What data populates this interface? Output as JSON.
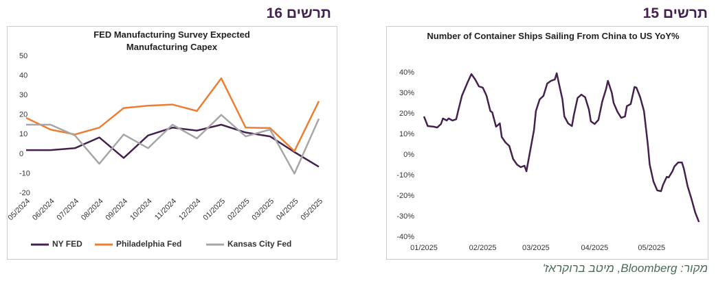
{
  "headers": [
    "תרשים 16",
    "תרשים 15"
  ],
  "source": "מקור: Bloomberg, מיטב ברוקראז'",
  "chart_data": [
    {
      "type": "line",
      "title": "FED Manufacturing Survey Expected Manufacturing Capex",
      "categories": [
        "05/2024",
        "06/2024",
        "07/2024",
        "08/2024",
        "09/2024",
        "10/2024",
        "11/2024",
        "12/2024",
        "01/2025",
        "02/2025",
        "03/2025",
        "04/2025",
        "05/2025"
      ],
      "series": [
        {
          "name": "NY FED",
          "color": "#43204d",
          "values": [
            2,
            2,
            3,
            8.5,
            -2,
            9.5,
            13.5,
            12,
            15,
            11,
            9,
            1,
            -6.5
          ]
        },
        {
          "name": "Philadelphia Fed",
          "color": "#ed7d31",
          "values": [
            18.5,
            12.5,
            10,
            13.5,
            23.5,
            24.7,
            25.3,
            22,
            38.7,
            13.5,
            13.3,
            1.5,
            27
          ]
        },
        {
          "name": "Kansas City Fed",
          "color": "#a6a6a6",
          "values": [
            15,
            15,
            9.5,
            -5,
            10,
            3,
            15,
            8,
            20,
            9,
            12.5,
            -10,
            18
          ]
        }
      ],
      "ylim": [
        -20,
        50
      ],
      "yticks": [
        -20,
        -10,
        0,
        10,
        20,
        30,
        40,
        50
      ],
      "legend": "bottom"
    },
    {
      "type": "line",
      "title": "Number of Container Ships Sailing From China to US YoY%",
      "x": [
        0,
        2,
        5,
        7,
        9,
        10,
        12,
        13,
        15,
        17,
        18,
        20,
        23,
        25,
        27,
        29,
        31,
        33,
        35,
        36,
        38,
        40,
        41,
        43,
        45,
        47,
        49,
        51,
        53,
        54,
        56,
        58,
        59,
        61,
        63,
        65,
        67,
        69,
        70,
        71,
        73,
        74,
        76,
        78,
        79,
        81,
        83,
        85,
        87,
        88,
        90,
        92,
        94,
        96,
        97,
        99,
        100,
        102,
        104,
        106,
        107,
        109,
        111,
        112,
        114,
        116,
        118,
        119,
        121,
        123,
        125,
        126,
        128,
        129,
        131,
        132,
        134,
        136,
        137,
        139,
        141,
        143,
        145
      ],
      "series": [
        {
          "color": "#43204d",
          "values": [
            18.7,
            14,
            13.7,
            13.3,
            15,
            17.7,
            16.7,
            17.7,
            16.7,
            17.3,
            21.3,
            28.7,
            35.3,
            39.3,
            36.7,
            33.3,
            32.7,
            28.7,
            21.3,
            20.7,
            13.7,
            15.3,
            8.7,
            6,
            4.3,
            -2,
            -4.7,
            -6,
            -5.3,
            -8,
            2,
            12,
            21.3,
            27,
            28.7,
            34.7,
            36,
            36.7,
            39.7,
            35.3,
            27,
            18.7,
            15.3,
            14,
            19.3,
            27.7,
            29.3,
            28,
            22,
            16.3,
            15,
            17,
            26,
            32,
            36,
            30.3,
            25.3,
            21,
            18,
            18.7,
            23.7,
            24.7,
            33,
            32.7,
            28,
            21.3,
            5.3,
            -4.7,
            -13,
            -17.3,
            -17.7,
            -14.7,
            -10.7,
            -11,
            -8,
            -5.7,
            -3.7,
            -3.7,
            -6.7,
            -15.3,
            -21.3,
            -28,
            -32.7
          ]
        }
      ],
      "xlim": [
        0,
        146
      ],
      "xticks": [
        {
          "value": 0,
          "label": "01/2025"
        },
        {
          "value": 31,
          "label": "02/2025"
        },
        {
          "value": 59,
          "label": "03/2025"
        },
        {
          "value": 90,
          "label": "04/2025"
        },
        {
          "value": 120,
          "label": "05/2025"
        }
      ],
      "ylim": [
        -40,
        40
      ],
      "yticks": [
        {
          "value": -40,
          "label": "-40%"
        },
        {
          "value": -30,
          "label": "-30%"
        },
        {
          "value": -20,
          "label": "-20%"
        },
        {
          "value": -10,
          "label": "-10%"
        },
        {
          "value": 0,
          "label": "0%"
        },
        {
          "value": 10,
          "label": "10%"
        },
        {
          "value": 20,
          "label": "20%"
        },
        {
          "value": 30,
          "label": "30%"
        },
        {
          "value": 40,
          "label": "40%"
        }
      ]
    }
  ]
}
